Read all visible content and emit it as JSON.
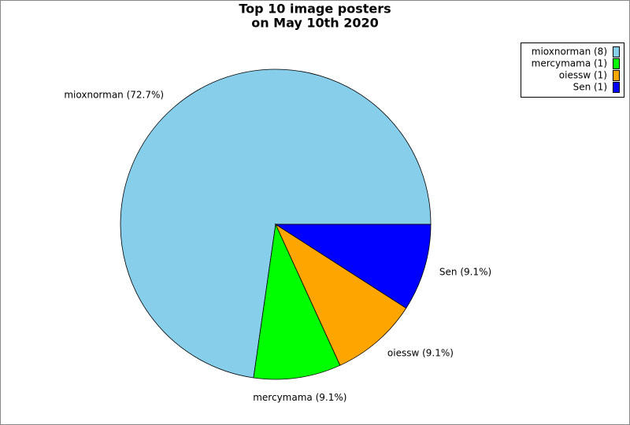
{
  "chart_data": {
    "type": "pie",
    "title": [
      "Top 10 image posters",
      "on May 10th 2020"
    ],
    "values": [
      8,
      1,
      1,
      1
    ],
    "value_labels": [
      "mioxnorman (72.7%)",
      "mercymama (9.1%)",
      "oiessw (9.1%)",
      "Sen (9.1%)"
    ],
    "legend": [
      "mioxnorman (8)",
      "mercymama (1)",
      "oiessw (1)",
      "Sen (1)"
    ],
    "colors": [
      "#87ceeb",
      "#00ff00",
      "#ffa500",
      "#0000ff"
    ],
    "legend_position": "upper right"
  }
}
